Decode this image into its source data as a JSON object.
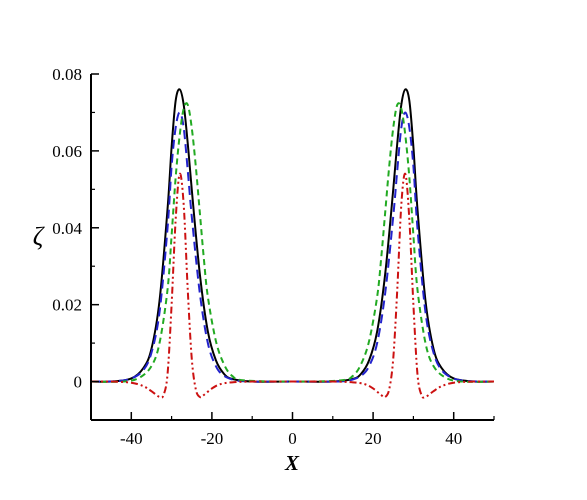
{
  "chart_data": {
    "type": "line",
    "title": "",
    "xlabel": "X",
    "ylabel": "ζ",
    "xlim": [
      -50,
      50
    ],
    "ylim": [
      -0.01,
      0.08
    ],
    "xticks": [
      -40,
      -20,
      0,
      20,
      40
    ],
    "xtick_labels": [
      "-40",
      "-20",
      "0",
      "20",
      "40"
    ],
    "yticks": [
      0,
      0.02,
      0.04,
      0.06,
      0.08
    ],
    "ytick_labels": [
      "0",
      "0.02",
      "0.04",
      "0.06",
      "0.08"
    ],
    "grid": false,
    "legend": "none",
    "series": [
      {
        "color": "#000000",
        "dash": "solid",
        "x": [
          -50,
          -45,
          -40,
          -37,
          -35,
          -33,
          -31,
          -30,
          -29,
          -28,
          -27,
          -26,
          -25,
          -23,
          -21,
          -19,
          -17,
          -15,
          -10,
          0,
          10,
          15,
          17,
          19,
          21,
          23,
          25,
          26,
          27,
          28,
          29,
          30,
          31,
          33,
          35,
          37,
          40,
          45,
          50
        ],
        "y": [
          0,
          0,
          0.0008,
          0.0035,
          0.0085,
          0.021,
          0.045,
          0.061,
          0.073,
          0.076,
          0.072,
          0.062,
          0.05,
          0.028,
          0.013,
          0.0055,
          0.002,
          0.0007,
          0,
          0,
          0,
          0.0007,
          0.002,
          0.0055,
          0.013,
          0.028,
          0.05,
          0.062,
          0.072,
          0.076,
          0.073,
          0.061,
          0.045,
          0.021,
          0.0085,
          0.0035,
          0.0008,
          0,
          0
        ]
      },
      {
        "color": "#2222cc",
        "dash": "long-dash",
        "x": [
          -50,
          -44,
          -40,
          -37,
          -35,
          -33,
          -31,
          -30,
          -29,
          -28,
          -27,
          -26,
          -25,
          -23,
          -21,
          -19,
          -17,
          -14,
          -10,
          0,
          10,
          14,
          17,
          19,
          21,
          23,
          25,
          26,
          27,
          28,
          29,
          30,
          31,
          33,
          35,
          37,
          40,
          44,
          50
        ],
        "y": [
          0,
          0.0001,
          0.0008,
          0.003,
          0.0075,
          0.018,
          0.04,
          0.056,
          0.066,
          0.07,
          0.066,
          0.055,
          0.043,
          0.023,
          0.01,
          0.004,
          0.0015,
          0.0003,
          0,
          0,
          0,
          0.0003,
          0.0015,
          0.004,
          0.01,
          0.023,
          0.043,
          0.055,
          0.066,
          0.07,
          0.066,
          0.056,
          0.04,
          0.018,
          0.0075,
          0.003,
          0.0008,
          0.0001,
          0
        ]
      },
      {
        "color": "#22aa22",
        "dash": "dash",
        "x": [
          -50,
          -42,
          -38,
          -35,
          -33,
          -31,
          -30,
          -29,
          -28,
          -27,
          -26,
          -25,
          -24,
          -23,
          -22,
          -21,
          -19,
          -17,
          -15,
          -12,
          0,
          12,
          15,
          17,
          19,
          21,
          22,
          23,
          24,
          25,
          26,
          27,
          28,
          29,
          30,
          31,
          33,
          35,
          38,
          42,
          50
        ],
        "y": [
          0,
          0,
          0.001,
          0.004,
          0.01,
          0.024,
          0.038,
          0.053,
          0.064,
          0.071,
          0.072,
          0.066,
          0.056,
          0.044,
          0.032,
          0.022,
          0.0105,
          0.0045,
          0.0015,
          0.0003,
          0,
          0.0003,
          0.0015,
          0.0045,
          0.0105,
          0.022,
          0.032,
          0.044,
          0.056,
          0.066,
          0.072,
          0.071,
          0.064,
          0.053,
          0.038,
          0.024,
          0.01,
          0.004,
          0.001,
          0,
          0
        ]
      },
      {
        "color": "#cc1111",
        "dash": "dash-dot-dot",
        "x": [
          -50,
          -45,
          -40,
          -37,
          -35,
          -33,
          -32,
          -31,
          -30,
          -29,
          -28,
          -27,
          -26,
          -25,
          -24,
          -23,
          -22,
          -20,
          -18,
          -15,
          -10,
          0,
          10,
          15,
          18,
          20,
          22,
          23,
          24,
          25,
          26,
          27,
          28,
          29,
          30,
          31,
          32,
          33,
          35,
          37,
          40,
          45,
          50
        ],
        "y": [
          0,
          0,
          -0.0003,
          -0.0012,
          -0.0025,
          -0.004,
          -0.0035,
          0.002,
          0.02,
          0.042,
          0.054,
          0.046,
          0.024,
          0.006,
          -0.002,
          -0.004,
          -0.0035,
          -0.0018,
          -0.0007,
          -0.0002,
          0,
          0,
          0,
          -0.0002,
          -0.0007,
          -0.0018,
          -0.0035,
          -0.004,
          -0.002,
          0.006,
          0.024,
          0.046,
          0.054,
          0.042,
          0.02,
          0.002,
          -0.0035,
          -0.004,
          -0.0025,
          -0.0012,
          -0.0003,
          0,
          0
        ]
      }
    ]
  }
}
